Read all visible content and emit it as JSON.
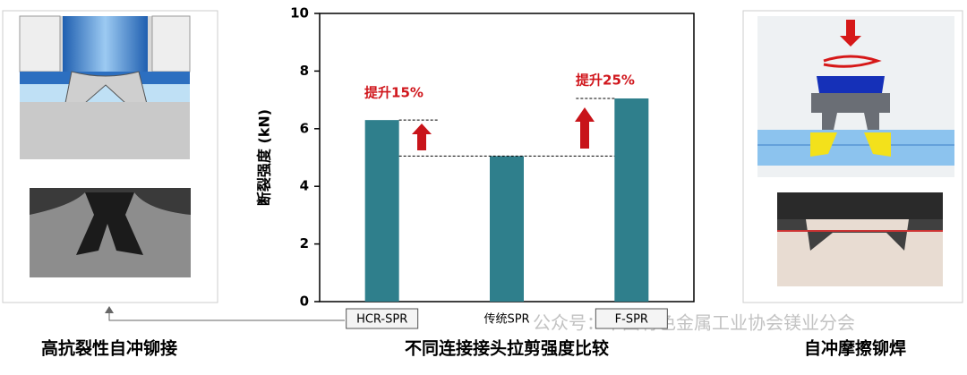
{
  "chart_data": {
    "type": "bar",
    "categories": [
      "HCR-SPR",
      "传统SPR",
      "F-SPR"
    ],
    "values": [
      6.3,
      5.05,
      7.05
    ],
    "color": "#2f7f8c",
    "ylim": [
      0,
      10
    ],
    "yticks": [
      0,
      2,
      4,
      6,
      8,
      10
    ],
    "ylabel": "断裂强度 (kN)",
    "annotations": [
      "提升15%",
      "提升25%"
    ]
  },
  "captions": {
    "left": "高抗裂性自冲铆接",
    "center": "不同连接接头拉剪强度比较",
    "right": "自冲摩擦铆焊"
  },
  "watermark": "公众号：中国有色金属工业协会镁业分会"
}
